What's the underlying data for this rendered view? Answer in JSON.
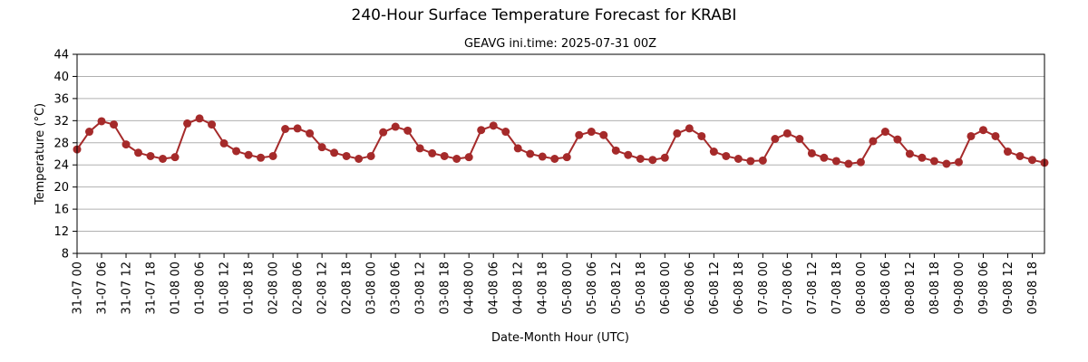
{
  "chart_data": {
    "type": "line",
    "title": "240-Hour Surface Temperature Forecast for KRABI",
    "subtitle": "GEAVG ini.time: 2025-07-31 00Z",
    "xlabel": "Date-Month Hour (UTC)",
    "ylabel": "Temperature (°C)",
    "ylim": [
      8,
      44
    ],
    "yticks": [
      8,
      12,
      16,
      20,
      24,
      28,
      32,
      36,
      40,
      44
    ],
    "grid": "horizontal",
    "line_color": "#a52a2a",
    "x_interval_hours": 3,
    "xtick_labels": [
      "31-07 00",
      "31-07 06",
      "31-07 12",
      "31-07 18",
      "01-08 00",
      "01-08 06",
      "01-08 12",
      "01-08 18",
      "02-08 00",
      "02-08 06",
      "02-08 12",
      "02-08 18",
      "03-08 00",
      "03-08 06",
      "03-08 12",
      "03-08 18",
      "04-08 00",
      "04-08 06",
      "04-08 12",
      "04-08 18",
      "05-08 00",
      "05-08 06",
      "05-08 12",
      "05-08 18",
      "06-08 00",
      "06-08 06",
      "06-08 12",
      "06-08 18",
      "07-08 00",
      "07-08 06",
      "07-08 12",
      "07-08 18",
      "08-08 00",
      "08-08 06",
      "08-08 12",
      "08-08 18",
      "09-08 00",
      "09-08 06",
      "09-08 12",
      "09-08 18"
    ],
    "series": [
      {
        "values": [
          26.8,
          30.0,
          31.9,
          31.3,
          27.7,
          26.2,
          25.6,
          25.1,
          25.4,
          31.5,
          32.4,
          31.3,
          27.9,
          26.5,
          25.8,
          25.3,
          25.6,
          30.5,
          30.6,
          29.7,
          27.2,
          26.2,
          25.6,
          25.1,
          25.6,
          29.9,
          30.9,
          30.2,
          27.0,
          26.1,
          25.6,
          25.1,
          25.4,
          30.3,
          31.1,
          30.0,
          27.0,
          26.0,
          25.5,
          25.1,
          25.4,
          29.4,
          30.0,
          29.4,
          26.6,
          25.8,
          25.1,
          24.9,
          25.3,
          29.7,
          30.6,
          29.2,
          26.4,
          25.6,
          25.1,
          24.7,
          24.8,
          28.7,
          29.7,
          28.7,
          26.1,
          25.3,
          24.7,
          24.2,
          24.5,
          28.3,
          30.0,
          28.6,
          26.0,
          25.3,
          24.7,
          24.2,
          24.5,
          29.2,
          30.3,
          29.2,
          26.4,
          25.6,
          24.9,
          24.4
        ]
      }
    ]
  }
}
